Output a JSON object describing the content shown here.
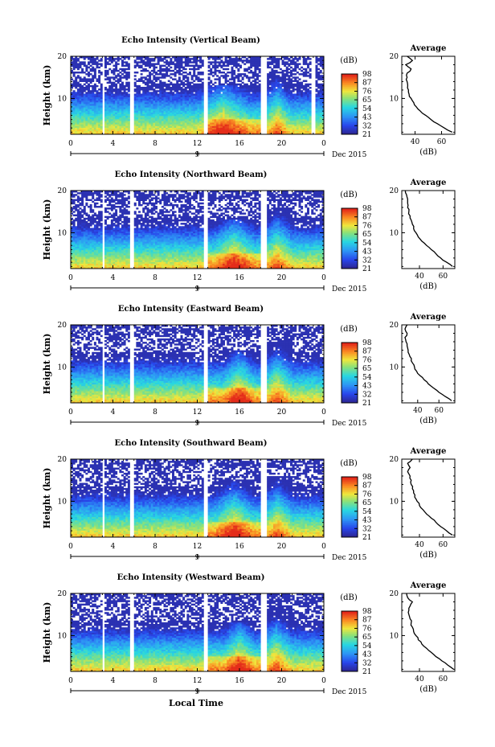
{
  "figure": {
    "x_axis_label": "Local Time",
    "date_label": "Dec 2015"
  },
  "chart_data": [
    {
      "type": "heatmap",
      "title": "Echo Intensity (Vertical Beam)",
      "ylabel": "Height (km)",
      "x_ticks": [
        "0",
        "4",
        "8",
        "12",
        "16",
        "20",
        "0"
      ],
      "y_ticks": [
        "10",
        "20"
      ],
      "xlim": [
        0,
        24
      ],
      "ylim": [
        1.5,
        20
      ],
      "day_marker": "9",
      "colorbar": {
        "unit": "(dB)",
        "ticks": [
          "21",
          "32",
          "43",
          "54",
          "65",
          "76",
          "87",
          "98"
        ],
        "range": [
          21,
          98
        ]
      },
      "gaps_hours": [
        [
          3.0,
          3.3
        ],
        [
          5.6,
          5.9
        ],
        [
          12.6,
          12.9
        ],
        [
          18.0,
          18.5
        ],
        [
          22.8,
          23.2
        ]
      ],
      "convection": [
        {
          "center": 19.6,
          "width": 1.2,
          "top": 15.5
        },
        {
          "center": 14.5,
          "width": 2.5,
          "top": 13
        }
      ],
      "average_profile": {
        "title": "Average",
        "xlabel": "(dB)",
        "x_ticks": [
          "40",
          "60"
        ],
        "xlim": [
          30,
          70
        ],
        "y_ticks": [
          "10",
          "20"
        ],
        "height": [
          2,
          3,
          4,
          5,
          6,
          7,
          8,
          9,
          10,
          11,
          12,
          13,
          14,
          15,
          16,
          17,
          18,
          19,
          20
        ],
        "db": [
          68,
          62,
          57,
          52,
          48,
          44,
          41,
          39,
          37,
          35.5,
          35,
          34.5,
          34,
          34,
          34,
          37,
          33,
          38,
          34
        ]
      }
    },
    {
      "type": "heatmap",
      "title": "Echo Intensity (Northward Beam)",
      "ylabel": "Height (km)",
      "x_ticks": [
        "0",
        "4",
        "8",
        "12",
        "16",
        "20",
        "0"
      ],
      "y_ticks": [
        "10",
        "20"
      ],
      "xlim": [
        0,
        24
      ],
      "ylim": [
        1.5,
        20
      ],
      "day_marker": "9",
      "colorbar": {
        "unit": "(dB)",
        "ticks": [
          "21",
          "32",
          "43",
          "54",
          "65",
          "76",
          "87",
          "98"
        ],
        "range": [
          21,
          98
        ]
      },
      "gaps_hours": [
        [
          3.0,
          3.3
        ],
        [
          5.6,
          5.9
        ],
        [
          12.6,
          12.9
        ],
        [
          18.0,
          18.5
        ]
      ],
      "convection": [
        {
          "center": 19.6,
          "width": 1.5,
          "top": 16
        },
        {
          "center": 15.5,
          "width": 2,
          "top": 13
        }
      ],
      "average_profile": {
        "title": "Average",
        "xlabel": "(dB)",
        "x_ticks": [
          "40",
          "60"
        ],
        "xlim": [
          25,
          70
        ],
        "y_ticks": [
          "10",
          "20"
        ],
        "height": [
          2,
          3,
          4,
          5,
          6,
          7,
          8,
          9,
          10,
          11,
          12,
          13,
          14,
          15,
          16,
          17,
          18,
          19,
          20
        ],
        "db": [
          68,
          63,
          58,
          54,
          50,
          46,
          42,
          39,
          37,
          35,
          34,
          33,
          32,
          31,
          30,
          30,
          30,
          29,
          28
        ]
      }
    },
    {
      "type": "heatmap",
      "title": "Echo Intensity (Eastward Beam)",
      "ylabel": "Height (km)",
      "x_ticks": [
        "0",
        "4",
        "8",
        "12",
        "16",
        "20",
        "0"
      ],
      "y_ticks": [
        "10",
        "20"
      ],
      "xlim": [
        0,
        24
      ],
      "ylim": [
        1.5,
        20
      ],
      "day_marker": "9",
      "colorbar": {
        "unit": "(dB)",
        "ticks": [
          "21",
          "32",
          "43",
          "54",
          "65",
          "76",
          "87",
          "98"
        ],
        "range": [
          21,
          98
        ]
      },
      "gaps_hours": [
        [
          3.0,
          3.3
        ],
        [
          5.6,
          5.9
        ],
        [
          12.6,
          12.9
        ],
        [
          18.0,
          18.5
        ]
      ],
      "convection": [
        {
          "center": 19.6,
          "width": 1.5,
          "top": 16
        },
        {
          "center": 16,
          "width": 1.5,
          "top": 14
        }
      ],
      "average_profile": {
        "title": "Average",
        "xlabel": "(dB)",
        "x_ticks": [
          "40",
          "60"
        ],
        "xlim": [
          25,
          75
        ],
        "y_ticks": [
          "10",
          "20"
        ],
        "height": [
          2,
          3,
          4,
          5,
          6,
          7,
          8,
          9,
          10,
          11,
          12,
          13,
          14,
          15,
          16,
          17,
          18,
          19,
          20
        ],
        "db": [
          72,
          66,
          60,
          55,
          50,
          46,
          42,
          39,
          37,
          35,
          34,
          32,
          31,
          30,
          29,
          28,
          30,
          28,
          30
        ]
      }
    },
    {
      "type": "heatmap",
      "title": "Echo Intensity (Southward Beam)",
      "ylabel": "Height (km)",
      "x_ticks": [
        "0",
        "4",
        "8",
        "12",
        "16",
        "20",
        "0"
      ],
      "y_ticks": [
        "10",
        "20"
      ],
      "xlim": [
        0,
        24
      ],
      "ylim": [
        1.5,
        20
      ],
      "day_marker": "9",
      "colorbar": {
        "unit": "(dB)",
        "ticks": [
          "21",
          "32",
          "43",
          "54",
          "65",
          "76",
          "87",
          "98"
        ],
        "range": [
          21,
          98
        ]
      },
      "gaps_hours": [
        [
          3.0,
          3.3
        ],
        [
          5.6,
          5.9
        ],
        [
          12.6,
          12.9
        ],
        [
          18.0,
          18.5
        ]
      ],
      "convection": [
        {
          "center": 19.6,
          "width": 1.5,
          "top": 16
        },
        {
          "center": 15.5,
          "width": 2,
          "top": 15
        }
      ],
      "average_profile": {
        "title": "Average",
        "xlabel": "(dB)",
        "x_ticks": [
          "40",
          "60"
        ],
        "xlim": [
          25,
          70
        ],
        "y_ticks": [
          "10",
          "20"
        ],
        "height": [
          2,
          3,
          4,
          5,
          6,
          7,
          8,
          9,
          10,
          11,
          12,
          13,
          14,
          15,
          16,
          17,
          18,
          19,
          20
        ],
        "db": [
          68,
          63,
          58,
          54,
          50,
          46,
          43,
          40,
          38,
          36,
          35,
          34,
          33,
          33,
          32,
          30,
          32,
          30,
          34
        ]
      }
    },
    {
      "type": "heatmap",
      "title": "Echo Intensity (Westward Beam)",
      "ylabel": "Height (km)",
      "x_ticks": [
        "0",
        "4",
        "8",
        "12",
        "16",
        "20",
        "0"
      ],
      "y_ticks": [
        "10",
        "20"
      ],
      "xlim": [
        0,
        24
      ],
      "ylim": [
        1.5,
        20
      ],
      "day_marker": "9",
      "colorbar": {
        "unit": "(dB)",
        "ticks": [
          "21",
          "32",
          "43",
          "54",
          "65",
          "76",
          "87",
          "98"
        ],
        "range": [
          21,
          98
        ]
      },
      "gaps_hours": [
        [
          3.0,
          3.3
        ],
        [
          5.6,
          5.9
        ],
        [
          12.6,
          12.9
        ],
        [
          18.0,
          18.5
        ]
      ],
      "convection": [
        {
          "center": 19.5,
          "width": 1.5,
          "top": 17
        },
        {
          "center": 16,
          "width": 1.5,
          "top": 13
        }
      ],
      "average_profile": {
        "title": "Average",
        "xlabel": "(dB)",
        "x_ticks": [
          "40",
          "60"
        ],
        "xlim": [
          25,
          70
        ],
        "y_ticks": [
          "10",
          "20"
        ],
        "height": [
          2,
          3,
          4,
          5,
          6,
          7,
          8,
          9,
          10,
          11,
          12,
          13,
          14,
          15,
          16,
          17,
          18,
          19,
          20
        ],
        "db": [
          69,
          64,
          59,
          54,
          50,
          46,
          42,
          39,
          37,
          35,
          34,
          33,
          32,
          31,
          31,
          32,
          34,
          30,
          29
        ]
      }
    }
  ]
}
